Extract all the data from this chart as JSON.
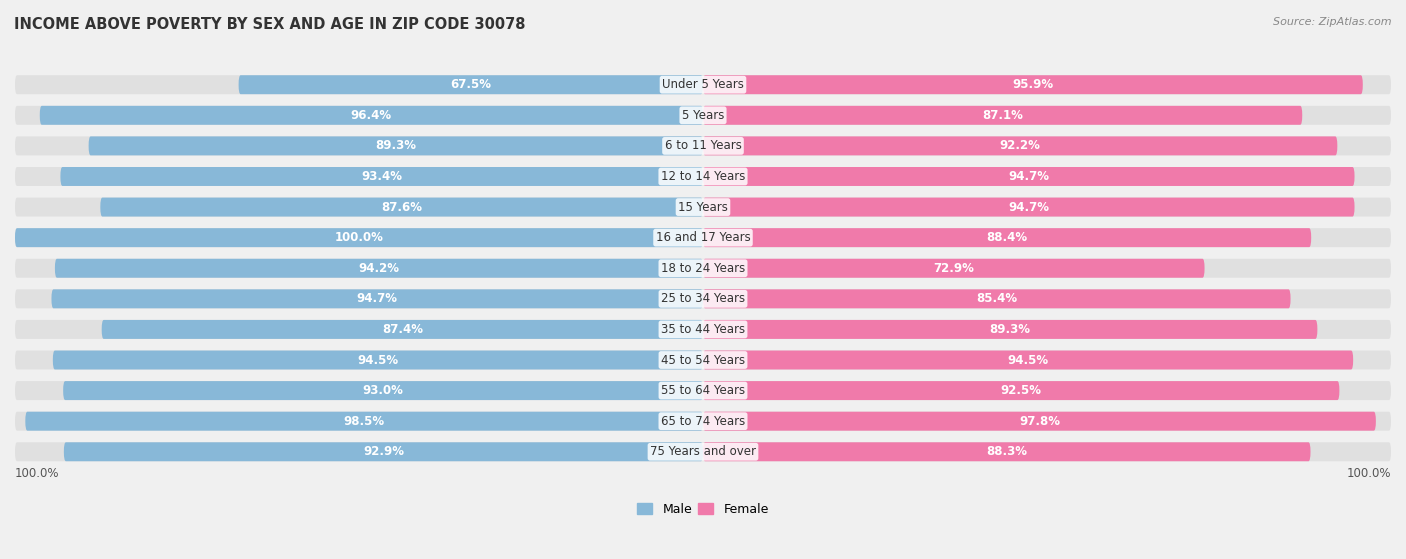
{
  "title": "INCOME ABOVE POVERTY BY SEX AND AGE IN ZIP CODE 30078",
  "source": "Source: ZipAtlas.com",
  "categories": [
    "Under 5 Years",
    "5 Years",
    "6 to 11 Years",
    "12 to 14 Years",
    "15 Years",
    "16 and 17 Years",
    "18 to 24 Years",
    "25 to 34 Years",
    "35 to 44 Years",
    "45 to 54 Years",
    "55 to 64 Years",
    "65 to 74 Years",
    "75 Years and over"
  ],
  "male_values": [
    67.5,
    96.4,
    89.3,
    93.4,
    87.6,
    100.0,
    94.2,
    94.7,
    87.4,
    94.5,
    93.0,
    98.5,
    92.9
  ],
  "female_values": [
    95.9,
    87.1,
    92.2,
    94.7,
    94.7,
    88.4,
    72.9,
    85.4,
    89.3,
    94.5,
    92.5,
    97.8,
    88.3
  ],
  "male_color": "#88b8d8",
  "male_color_dark": "#5a9bbf",
  "female_color": "#f07aaa",
  "female_color_light": "#f9c0d8",
  "male_label": "Male",
  "female_label": "Female",
  "background_color": "#f0f0f0",
  "bar_background_color": "#e0e0e0",
  "title_fontsize": 10.5,
  "value_fontsize": 8.5,
  "cat_fontsize": 8.5,
  "source_fontsize": 8,
  "legend_fontsize": 9,
  "max_val": 100.0
}
